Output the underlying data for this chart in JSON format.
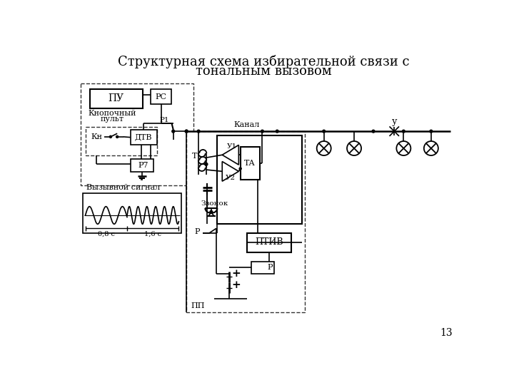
{
  "title_line1": "Структурная схема избирательной связи с",
  "title_line2": "тональным вызовом",
  "title_fontsize": 13,
  "page_number": "13",
  "bg_color": "#ffffff"
}
